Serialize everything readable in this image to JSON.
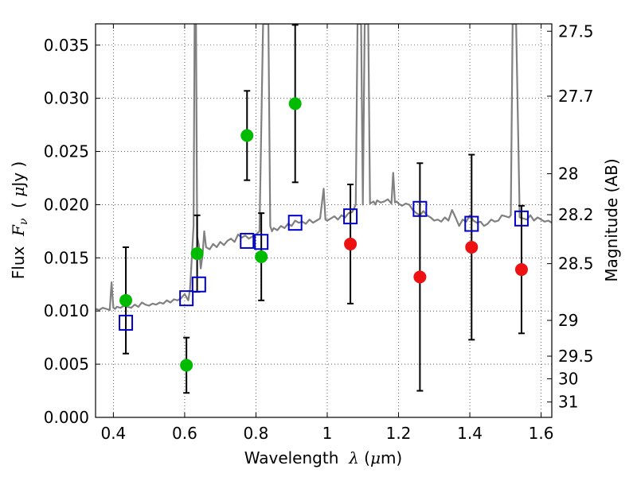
{
  "chart_data": {
    "type": "scatter",
    "title": "",
    "xlabel_parts": [
      "Wavelength  ",
      "λ",
      " (",
      "μ",
      "m)"
    ],
    "ylabel_parts": [
      "Flux  ",
      "F",
      "ν",
      "  ( ",
      "μ",
      "Jy )"
    ],
    "y2label": "Magnitude (AB)",
    "xlim": [
      0.35,
      1.63
    ],
    "ylim": [
      0.0,
      0.037
    ],
    "grid": true,
    "x_ticks": [
      {
        "value": 0.4,
        "label": "0.4"
      },
      {
        "value": 0.6,
        "label": "0.6"
      },
      {
        "value": 0.8,
        "label": "0.8"
      },
      {
        "value": 1.0,
        "label": "1"
      },
      {
        "value": 1.2,
        "label": "1.2"
      },
      {
        "value": 1.4,
        "label": "1.4"
      },
      {
        "value": 1.6,
        "label": "1.6"
      }
    ],
    "y_ticks": [
      {
        "value": 0.0,
        "label": "0.000"
      },
      {
        "value": 0.005,
        "label": "0.005"
      },
      {
        "value": 0.01,
        "label": "0.010"
      },
      {
        "value": 0.015,
        "label": "0.015"
      },
      {
        "value": 0.02,
        "label": "0.020"
      },
      {
        "value": 0.025,
        "label": "0.025"
      },
      {
        "value": 0.03,
        "label": "0.030"
      },
      {
        "value": 0.035,
        "label": "0.035"
      }
    ],
    "y2_ticks": [
      {
        "mag": 27.5,
        "label": "27.5"
      },
      {
        "mag": 27.7,
        "label": "27.7"
      },
      {
        "mag": 28.0,
        "label": "28"
      },
      {
        "mag": 28.2,
        "label": "28.2"
      },
      {
        "mag": 28.5,
        "label": "28.5"
      },
      {
        "mag": 29.0,
        "label": "29"
      },
      {
        "mag": 29.5,
        "label": "29.5"
      },
      {
        "mag": 30.0,
        "label": "30"
      },
      {
        "mag": 31.0,
        "label": "31"
      }
    ],
    "colors": {
      "spectrum": "#808080",
      "detected": "#00bb00",
      "undetected": "#ee1111",
      "model": "#0000cc",
      "errorbar": "#000000"
    },
    "spectrum": {
      "x": [
        0.35,
        0.36,
        0.37,
        0.38,
        0.39,
        0.395,
        0.4,
        0.405,
        0.41,
        0.42,
        0.43,
        0.44,
        0.45,
        0.46,
        0.47,
        0.48,
        0.49,
        0.5,
        0.51,
        0.52,
        0.53,
        0.54,
        0.55,
        0.56,
        0.57,
        0.58,
        0.59,
        0.6,
        0.61,
        0.615,
        0.62,
        0.625,
        0.628,
        0.63,
        0.632,
        0.635,
        0.64,
        0.645,
        0.65,
        0.655,
        0.66,
        0.67,
        0.68,
        0.69,
        0.7,
        0.71,
        0.72,
        0.73,
        0.74,
        0.75,
        0.76,
        0.77,
        0.78,
        0.79,
        0.8,
        0.81,
        0.82,
        0.83,
        0.835,
        0.84,
        0.845,
        0.85,
        0.86,
        0.87,
        0.88,
        0.89,
        0.9,
        0.91,
        0.92,
        0.93,
        0.94,
        0.95,
        0.96,
        0.97,
        0.98,
        0.99,
        0.995,
        1.0,
        1.01,
        1.02,
        1.03,
        1.04,
        1.05,
        1.06,
        1.07,
        1.08,
        1.085,
        1.09,
        1.095,
        1.1,
        1.105,
        1.11,
        1.115,
        1.12,
        1.125,
        1.13,
        1.135,
        1.14,
        1.15,
        1.16,
        1.17,
        1.18,
        1.185,
        1.19,
        1.195,
        1.2,
        1.21,
        1.22,
        1.23,
        1.24,
        1.25,
        1.26,
        1.27,
        1.28,
        1.29,
        1.3,
        1.31,
        1.32,
        1.33,
        1.34,
        1.35,
        1.36,
        1.37,
        1.38,
        1.39,
        1.4,
        1.41,
        1.42,
        1.43,
        1.44,
        1.45,
        1.46,
        1.47,
        1.48,
        1.49,
        1.5,
        1.51,
        1.515,
        1.52,
        1.525,
        1.53,
        1.54,
        1.55,
        1.56,
        1.57,
        1.58,
        1.59,
        1.6,
        1.61,
        1.62,
        1.63
      ],
      "y": [
        0.0102,
        0.0101,
        0.0103,
        0.0102,
        0.0101,
        0.0127,
        0.0103,
        0.0102,
        0.0104,
        0.0103,
        0.0105,
        0.0104,
        0.0103,
        0.0106,
        0.0104,
        0.0108,
        0.0106,
        0.0105,
        0.0107,
        0.0106,
        0.0108,
        0.0107,
        0.011,
        0.0108,
        0.0111,
        0.011,
        0.0112,
        0.0116,
        0.011,
        0.012,
        0.015,
        0.018,
        0.037,
        0.037,
        0.037,
        0.017,
        0.0162,
        0.014,
        0.0152,
        0.0175,
        0.016,
        0.0158,
        0.0163,
        0.016,
        0.0165,
        0.0162,
        0.0166,
        0.0168,
        0.0165,
        0.0172,
        0.0169,
        0.0171,
        0.0168,
        0.017,
        0.0172,
        0.0175,
        0.037,
        0.037,
        0.037,
        0.018,
        0.0175,
        0.0178,
        0.0176,
        0.018,
        0.0178,
        0.0182,
        0.018,
        0.0185,
        0.0183,
        0.0184,
        0.0182,
        0.0186,
        0.0183,
        0.0185,
        0.0187,
        0.0215,
        0.0186,
        0.0185,
        0.0187,
        0.0189,
        0.0186,
        0.019,
        0.0188,
        0.0192,
        0.0193,
        0.02,
        0.037,
        0.037,
        0.037,
        0.02,
        0.037,
        0.037,
        0.037,
        0.0201,
        0.0202,
        0.0203,
        0.02,
        0.0204,
        0.0202,
        0.0203,
        0.0205,
        0.0201,
        0.023,
        0.0202,
        0.0203,
        0.0201,
        0.0199,
        0.0201,
        0.02,
        0.0195,
        0.0192,
        0.019,
        0.0194,
        0.019,
        0.0188,
        0.0185,
        0.0186,
        0.0184,
        0.0188,
        0.0185,
        0.0195,
        0.0188,
        0.018,
        0.0186,
        0.0184,
        0.019,
        0.0185,
        0.0183,
        0.0184,
        0.018,
        0.0182,
        0.0186,
        0.0184,
        0.0185,
        0.019,
        0.0189,
        0.0188,
        0.019,
        0.037,
        0.037,
        0.037,
        0.0188,
        0.0187,
        0.0186,
        0.019,
        0.0185,
        0.0188,
        0.0186,
        0.0184,
        0.0185,
        0.0183
      ]
    },
    "detected_points": [
      {
        "x": 0.435,
        "y": 0.011,
        "err": 0.005
      },
      {
        "x": 0.605,
        "y": 0.0049,
        "err": 0.0026
      },
      {
        "x": 0.635,
        "y": 0.0154,
        "err": 0.0036
      },
      {
        "x": 0.775,
        "y": 0.0265,
        "err": 0.0042
      },
      {
        "x": 0.815,
        "y": 0.0151,
        "err": 0.0041
      },
      {
        "x": 0.91,
        "y": 0.0295,
        "err": 0.0074
      }
    ],
    "undetected_points": [
      {
        "x": 1.065,
        "y": 0.0163,
        "err": 0.0056
      },
      {
        "x": 1.26,
        "y": 0.0132,
        "err": 0.0107
      },
      {
        "x": 1.405,
        "y": 0.016,
        "err": 0.0087
      },
      {
        "x": 1.545,
        "y": 0.0139,
        "err": 0.006
      }
    ],
    "model_points": [
      {
        "x": 0.435,
        "y": 0.0089
      },
      {
        "x": 0.605,
        "y": 0.0112
      },
      {
        "x": 0.64,
        "y": 0.0125
      },
      {
        "x": 0.775,
        "y": 0.0166
      },
      {
        "x": 0.815,
        "y": 0.0165
      },
      {
        "x": 0.91,
        "y": 0.0183
      },
      {
        "x": 1.065,
        "y": 0.0189
      },
      {
        "x": 1.26,
        "y": 0.0196
      },
      {
        "x": 1.405,
        "y": 0.0182
      },
      {
        "x": 1.545,
        "y": 0.0187
      }
    ]
  }
}
